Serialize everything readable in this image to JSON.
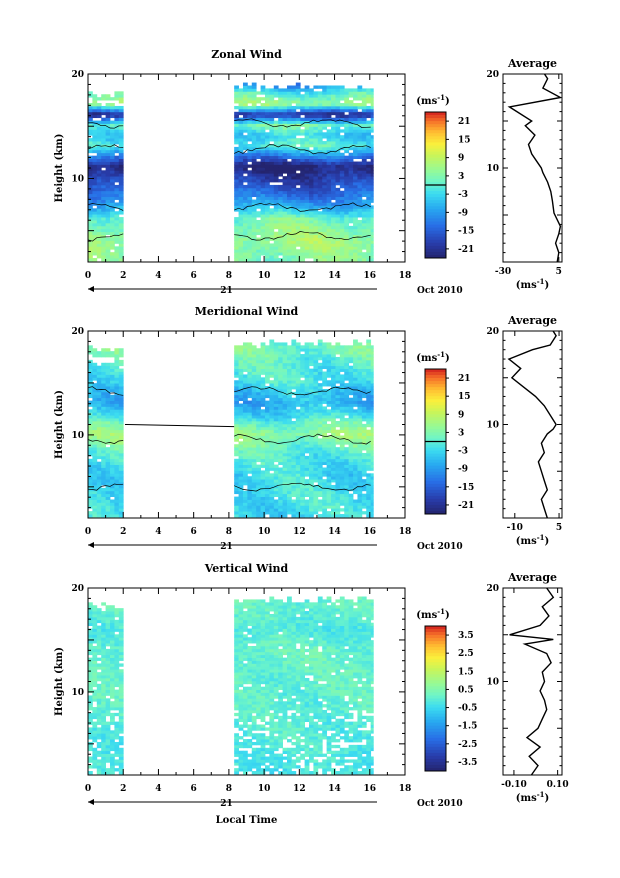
{
  "page_title": "Local Time",
  "chart_data": [
    {
      "type": "heatmap",
      "title": "Zonal Wind",
      "ylabel": "Height (km)",
      "xlabel": "",
      "date_label": "21",
      "date_suffix": "Oct 2010",
      "xlim": [
        0,
        18
      ],
      "ylim": [
        2,
        20
      ],
      "x_ticks": [
        0,
        2,
        4,
        6,
        8,
        10,
        12,
        14,
        16,
        18
      ],
      "y_ticks": [
        10,
        20
      ],
      "data_segments": [
        [
          0,
          2
        ],
        [
          8.3,
          16.2
        ]
      ],
      "colorbar": {
        "unit": "(ms",
        "unit_exp": "-1",
        "unit_close": ")",
        "ticks": [
          21,
          15,
          9,
          3,
          -3,
          -9,
          -15,
          -21
        ],
        "range": [
          -24,
          24
        ],
        "zero_line": true
      },
      "field": {
        "profile": [
          [
            2,
            3
          ],
          [
            4,
            6
          ],
          [
            5,
            4
          ],
          [
            6,
            2
          ],
          [
            7,
            -6
          ],
          [
            8,
            -12
          ],
          [
            9,
            -16
          ],
          [
            10,
            -20
          ],
          [
            11,
            -24
          ],
          [
            12,
            -12
          ],
          [
            13,
            0
          ],
          [
            14,
            -4
          ],
          [
            15,
            2
          ],
          [
            16,
            -22
          ],
          [
            17,
            6
          ],
          [
            18,
            0
          ],
          [
            18.8,
            -10
          ]
        ],
        "valid_top": [
          18.5,
          19
        ]
      },
      "profile_panel": {
        "title": "Average",
        "xlabel": "(ms",
        "xlabel_exp": "-1",
        "xlabel_close": ")",
        "xlim": [
          -30,
          7
        ],
        "x_ticks": [
          -30,
          5
        ],
        "ylim": [
          0,
          20
        ],
        "y_ticks": [
          10,
          20
        ],
        "points": [
          [
            4,
            0
          ],
          [
            5,
            1
          ],
          [
            3,
            2
          ],
          [
            5,
            3
          ],
          [
            6,
            3.8
          ],
          [
            4,
            4.5
          ],
          [
            2,
            5.2
          ],
          [
            1,
            6.5
          ],
          [
            0,
            7.5
          ],
          [
            -2,
            8.5
          ],
          [
            -5,
            9.5
          ],
          [
            -6,
            10
          ],
          [
            -8,
            10.5
          ],
          [
            -12,
            11.5
          ],
          [
            -14,
            12.5
          ],
          [
            -10,
            13.5
          ],
          [
            -16,
            14.5
          ],
          [
            -12,
            15
          ],
          [
            -26,
            16.5
          ],
          [
            6,
            17.5
          ],
          [
            -5,
            18.5
          ],
          [
            -2,
            19.5
          ],
          [
            -4,
            20
          ]
        ]
      }
    },
    {
      "type": "heatmap",
      "title": "Meridional Wind",
      "ylabel": "Height (km)",
      "xlabel": "",
      "date_label": "21",
      "date_suffix": "Oct 2010",
      "xlim": [
        0,
        18
      ],
      "ylim": [
        2,
        20
      ],
      "x_ticks": [
        0,
        2,
        4,
        6,
        8,
        10,
        12,
        14,
        16,
        18
      ],
      "y_ticks": [
        10,
        20
      ],
      "data_segments": [
        [
          0,
          2
        ],
        [
          8.3,
          16.2
        ]
      ],
      "colorbar": {
        "unit": "(ms",
        "unit_exp": "-1",
        "unit_close": ")",
        "ticks": [
          21,
          15,
          9,
          3,
          -3,
          -9,
          -15,
          -21
        ],
        "range": [
          -24,
          24
        ],
        "zero_line": true
      },
      "field": {
        "profile": [
          [
            2,
            -3
          ],
          [
            4,
            -2
          ],
          [
            6,
            -3
          ],
          [
            8,
            -1
          ],
          [
            9,
            2
          ],
          [
            10,
            5
          ],
          [
            11,
            1
          ],
          [
            12,
            -4
          ],
          [
            13,
            -7
          ],
          [
            14,
            -5
          ],
          [
            15,
            -2
          ],
          [
            16,
            -1
          ],
          [
            17,
            0
          ],
          [
            18,
            2
          ],
          [
            19,
            1
          ],
          [
            20,
            0
          ]
        ],
        "valid_top": [
          18.5,
          19
        ]
      },
      "profile_panel": {
        "title": "Average",
        "xlabel": "(ms",
        "xlabel_exp": "-1",
        "xlabel_close": ")",
        "xlim": [
          -14,
          6
        ],
        "x_ticks": [
          -10,
          5
        ],
        "ylim": [
          0,
          20
        ],
        "y_ticks": [
          10,
          20
        ],
        "points": [
          [
            1,
            0
          ],
          [
            0,
            1
          ],
          [
            -1,
            2
          ],
          [
            1,
            3
          ],
          [
            0,
            4
          ],
          [
            -1,
            5
          ],
          [
            -2,
            6
          ],
          [
            0,
            7
          ],
          [
            -1,
            8
          ],
          [
            1,
            9
          ],
          [
            3,
            9.5
          ],
          [
            4,
            10
          ],
          [
            2,
            11
          ],
          [
            0,
            12
          ],
          [
            -3,
            13
          ],
          [
            -7,
            14
          ],
          [
            -11,
            15
          ],
          [
            -8,
            16
          ],
          [
            -12,
            17
          ],
          [
            -4,
            18
          ],
          [
            2,
            18.5
          ],
          [
            4,
            19.5
          ],
          [
            3,
            20
          ]
        ]
      }
    },
    {
      "type": "heatmap",
      "title": "Vertical Wind",
      "ylabel": "Height (km)",
      "xlabel": "Local Time",
      "date_label": "21",
      "date_suffix": "Oct 2010",
      "xlim": [
        0,
        18
      ],
      "ylim": [
        2,
        20
      ],
      "x_ticks": [
        0,
        2,
        4,
        6,
        8,
        10,
        12,
        14,
        16,
        18
      ],
      "y_ticks": [
        10,
        20
      ],
      "data_segments": [
        [
          0,
          2
        ],
        [
          8.3,
          16.2
        ]
      ],
      "colorbar": {
        "unit": "(ms",
        "unit_exp": "-1",
        "unit_close": ")",
        "ticks": [
          "3.5",
          "2.5",
          "1.5",
          "0.5",
          "-0.5",
          "-1.5",
          "-2.5",
          "-3.5"
        ],
        "range": [
          -4,
          4
        ],
        "zero_line": false
      },
      "field": {
        "profile": [
          [
            2,
            -0.3
          ],
          [
            4,
            -0.2
          ],
          [
            6,
            -0.1
          ],
          [
            8,
            0.0
          ],
          [
            10,
            0.05
          ],
          [
            12,
            0.1
          ],
          [
            14,
            0.15
          ],
          [
            16,
            -0.2
          ],
          [
            18,
            0.1
          ],
          [
            20,
            0.1
          ]
        ],
        "valid_top": [
          18.5,
          19
        ]
      },
      "profile_panel": {
        "title": "Average",
        "xlabel": "(ms",
        "xlabel_exp": "-1",
        "xlabel_close": ")",
        "xlim": [
          -0.15,
          0.12
        ],
        "x_ticks": [
          "-0.10",
          "0.10"
        ],
        "ylim": [
          0,
          20
        ],
        "y_ticks": [
          10,
          20
        ],
        "points": [
          [
            -0.02,
            0
          ],
          [
            0.01,
            1
          ],
          [
            -0.03,
            2
          ],
          [
            0.02,
            3
          ],
          [
            -0.04,
            4
          ],
          [
            0.01,
            5
          ],
          [
            0.03,
            6
          ],
          [
            0.05,
            7
          ],
          [
            0.04,
            8
          ],
          [
            0.02,
            9
          ],
          [
            0.04,
            10
          ],
          [
            0.03,
            11
          ],
          [
            0.07,
            12
          ],
          [
            0.05,
            13
          ],
          [
            -0.05,
            14
          ],
          [
            0.08,
            14.5
          ],
          [
            -0.12,
            15
          ],
          [
            0.02,
            16
          ],
          [
            0.06,
            17
          ],
          [
            0.03,
            18
          ],
          [
            0.08,
            19
          ],
          [
            0.05,
            20
          ]
        ]
      }
    }
  ]
}
